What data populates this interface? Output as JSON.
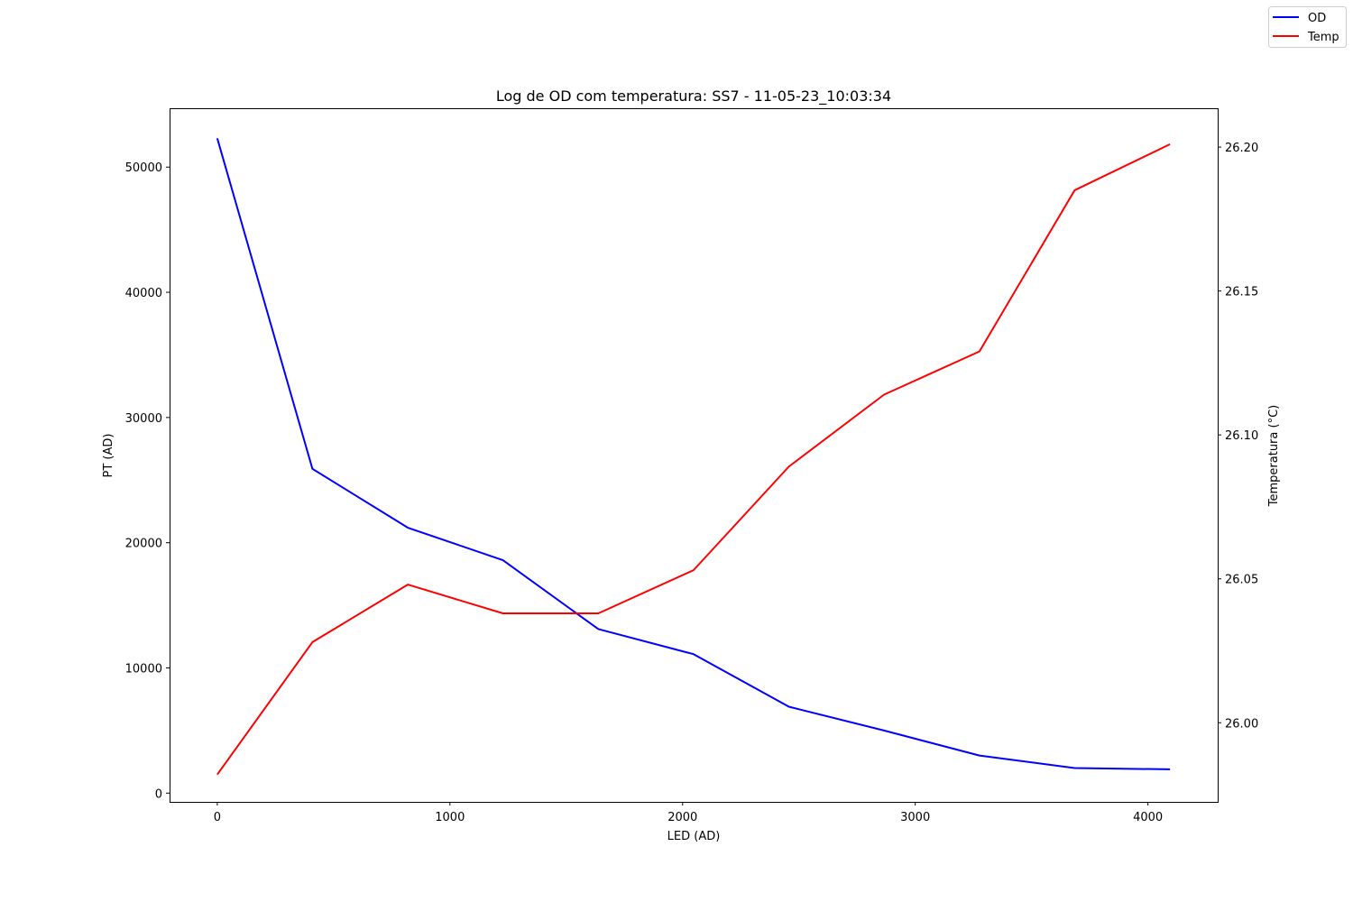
{
  "chart_data": {
    "type": "line",
    "title": "Log de OD com temperatura: SS7 - 11-05-23_10:03:34",
    "xlabel": "LED (AD)",
    "ylabel": "PT (AD)",
    "ylabel_right": "Temperatura (°C)",
    "xlim": [
      -205,
      4300
    ],
    "ylim": [
      -700,
      54700
    ],
    "ylim_right": [
      25.9725,
      26.2135
    ],
    "x_ticks": [
      0,
      1000,
      2000,
      3000,
      4000
    ],
    "y_ticks": [
      0,
      10000,
      20000,
      30000,
      40000,
      50000
    ],
    "y_ticks_right": [
      "26.00",
      "26.05",
      "26.10",
      "26.15",
      "26.20"
    ],
    "grid": false,
    "legend_position": "top-right (figure)",
    "x": [
      0,
      409,
      819,
      1228,
      1638,
      2047,
      2457,
      2866,
      3276,
      3685,
      4095
    ],
    "series": [
      {
        "name": "OD",
        "axis": "left",
        "color": "#0000ff",
        "values": [
          52300,
          25900,
          21200,
          18600,
          13100,
          11100,
          6900,
          5000,
          3000,
          2000,
          1900
        ]
      },
      {
        "name": "Temp",
        "axis": "right",
        "color": "#ff0000",
        "values": [
          25.982,
          26.028,
          26.048,
          26.038,
          26.038,
          26.053,
          26.089,
          26.114,
          26.129,
          26.185,
          26.201
        ]
      }
    ]
  }
}
